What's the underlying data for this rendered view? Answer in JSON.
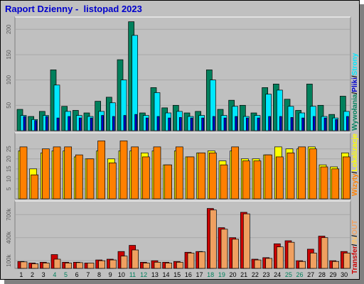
{
  "report_title": "Raport Dzienny -  listopad 2023",
  "colors": {
    "hits": "#00805c",
    "files": "#00e8ff",
    "pages": "#0000cc",
    "visits": "#ff8000",
    "sites": "#ffff00",
    "kbytes": "#cc0000",
    "kbytes_in": "#ffc060",
    "kbytes_out": "#f0a060",
    "panel_bg": "#c0c0c0",
    "weekend_label": "#00805c",
    "weekday_label": "#000000"
  },
  "legends": {
    "top": [
      {
        "text": "Wywołania",
        "color": "#00805c"
      },
      {
        "text": "/",
        "color": "#000000"
      },
      {
        "text": "Pliki",
        "color": "#0000cc"
      },
      {
        "text": "/",
        "color": "#000000"
      },
      {
        "text": "Strony",
        "color": "#00e8ff"
      }
    ],
    "middle": [
      {
        "text": "Wizyty",
        "color": "#ff8000"
      },
      {
        "text": "/",
        "color": "#000000"
      },
      {
        "text": "Lokalizacje",
        "color": "#ffff00"
      }
    ],
    "bottom": [
      {
        "text": "Transfer",
        "color": "#cc0000"
      },
      {
        "text": "/",
        "color": "#000000"
      },
      {
        "text": "IN",
        "color": "#ffc060"
      },
      {
        "text": "/",
        "color": "#000000"
      },
      {
        "text": "OUT",
        "color": "#f0a060"
      }
    ]
  },
  "chart_data": [
    {
      "type": "bar",
      "categories": [
        "1",
        "2",
        "3",
        "4",
        "5",
        "6",
        "7",
        "8",
        "9",
        "10",
        "11",
        "12",
        "13",
        "14",
        "15",
        "16",
        "17",
        "18",
        "19",
        "20",
        "21",
        "22",
        "23",
        "24",
        "25",
        "26",
        "27",
        "28",
        "29",
        "30"
      ],
      "weekend_days": [
        "4",
        "5",
        "11",
        "12",
        "18",
        "19",
        "25",
        "26"
      ],
      "ylim": [
        0,
        220
      ],
      "yticks": [
        50,
        100,
        150,
        200
      ],
      "series": [
        {
          "values": [
            42,
            28,
            38,
            120,
            48,
            40,
            35,
            58,
            66,
            140,
            215,
            35,
            85,
            45,
            50,
            35,
            38,
            120,
            42,
            60,
            50,
            35,
            85,
            92,
            62,
            40,
            92,
            50,
            32,
            68
          ]
        },
        {
          "values": [
            30,
            22,
            30,
            90,
            38,
            30,
            28,
            38,
            55,
            100,
            188,
            30,
            75,
            35,
            38,
            28,
            30,
            100,
            30,
            48,
            28,
            30,
            72,
            80,
            48,
            35,
            48,
            28,
            25,
            38
          ]
        },
        {
          "values": [
            28,
            20,
            28,
            25,
            28,
            25,
            25,
            30,
            28,
            30,
            32,
            25,
            28,
            25,
            26,
            25,
            25,
            28,
            25,
            28,
            25,
            25,
            28,
            28,
            26,
            25,
            28,
            25,
            22,
            28
          ]
        }
      ]
    },
    {
      "type": "bar",
      "categories": [
        "1",
        "2",
        "3",
        "4",
        "5",
        "6",
        "7",
        "8",
        "9",
        "10",
        "11",
        "12",
        "13",
        "14",
        "15",
        "16",
        "17",
        "18",
        "19",
        "20",
        "21",
        "22",
        "23",
        "24",
        "25",
        "26",
        "27",
        "28",
        "29",
        "30"
      ],
      "ylim": [
        0,
        32
      ],
      "yticks": [
        5,
        10,
        15,
        20,
        25
      ],
      "series": [
        {
          "values": [
            26,
            12,
            25,
            26,
            26,
            22,
            20,
            29,
            18,
            29,
            26,
            21,
            26,
            17,
            26,
            21,
            23,
            23,
            17,
            26,
            19,
            19,
            22,
            21,
            23,
            26,
            25,
            16,
            15,
            21
          ]
        },
        {
          "values": [
            24,
            15,
            23,
            24,
            24,
            21,
            20,
            24,
            20,
            24,
            24,
            23,
            24,
            17,
            24,
            21,
            23,
            24,
            19,
            24,
            20,
            20,
            22,
            26,
            25,
            25,
            26,
            17,
            16,
            23
          ]
        }
      ]
    },
    {
      "type": "bar",
      "categories": [
        "1",
        "2",
        "3",
        "4",
        "5",
        "6",
        "7",
        "8",
        "9",
        "10",
        "11",
        "12",
        "13",
        "14",
        "15",
        "16",
        "17",
        "18",
        "19",
        "20",
        "21",
        "22",
        "23",
        "24",
        "25",
        "26",
        "27",
        "28",
        "29",
        "30"
      ],
      "ylim": [
        0,
        850000
      ],
      "yticks": [
        100000,
        400000,
        700000
      ],
      "ytick_labels": [
        "100k",
        "400k",
        "700k"
      ],
      "series": [
        {
          "values": [
            90000,
            70000,
            80000,
            180000,
            80000,
            80000,
            70000,
            110000,
            120000,
            220000,
            300000,
            80000,
            100000,
            80000,
            90000,
            210000,
            220000,
            780000,
            530000,
            400000,
            730000,
            120000,
            140000,
            320000,
            360000,
            100000,
            250000,
            420000,
            100000,
            220000
          ]
        },
        {
          "values": [
            85000,
            60000,
            70000,
            120000,
            70000,
            75000,
            70000,
            100000,
            110000,
            160000,
            240000,
            70000,
            80000,
            70000,
            80000,
            200000,
            215000,
            760000,
            510000,
            380000,
            710000,
            110000,
            130000,
            280000,
            340000,
            90000,
            200000,
            400000,
            90000,
            200000
          ]
        }
      ]
    }
  ]
}
